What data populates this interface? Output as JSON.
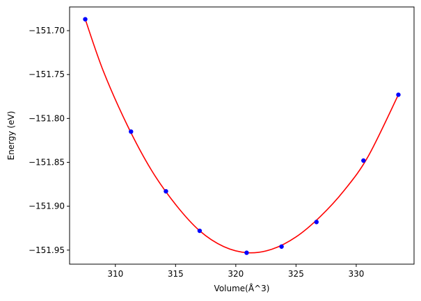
{
  "chart_data": {
    "type": "scatter",
    "title": "",
    "xlabel": "Volume(Å^3)",
    "ylabel": "Energy (eV)",
    "xlim": [
      306.2,
      334.8
    ],
    "ylim": [
      -151.966,
      -151.673
    ],
    "x_ticks": [
      310,
      315,
      320,
      325,
      330
    ],
    "x_tick_labels": [
      "310",
      "315",
      "320",
      "325",
      "330"
    ],
    "y_ticks": [
      -151.7,
      -151.75,
      -151.8,
      -151.85,
      -151.9,
      -151.95
    ],
    "y_tick_labels": [
      "−151.70",
      "−151.75",
      "−151.80",
      "−151.85",
      "−151.90",
      "−151.95"
    ],
    "grid": false,
    "legend": "none",
    "series": [
      {
        "kind": "points",
        "color": "#0000ff",
        "x": [
          307.5,
          311.3,
          314.2,
          317.0,
          320.9,
          323.8,
          326.7,
          330.6,
          333.5
        ],
        "y": [
          -151.687,
          -151.815,
          -151.883,
          -151.928,
          -151.953,
          -151.946,
          -151.918,
          -151.848,
          -151.773
        ]
      },
      {
        "kind": "fit-curve",
        "color": "#ff0000",
        "x": [
          307.5,
          309.0,
          311.0,
          313.0,
          315.0,
          317.0,
          319.0,
          321.0,
          323.0,
          325.0,
          327.0,
          329.0,
          331.0,
          333.5
        ],
        "y": [
          -151.687,
          -151.746,
          -151.808,
          -151.859,
          -151.898,
          -151.928,
          -151.946,
          -151.953,
          -151.949,
          -151.935,
          -151.912,
          -151.882,
          -151.843,
          -151.773
        ]
      }
    ]
  }
}
